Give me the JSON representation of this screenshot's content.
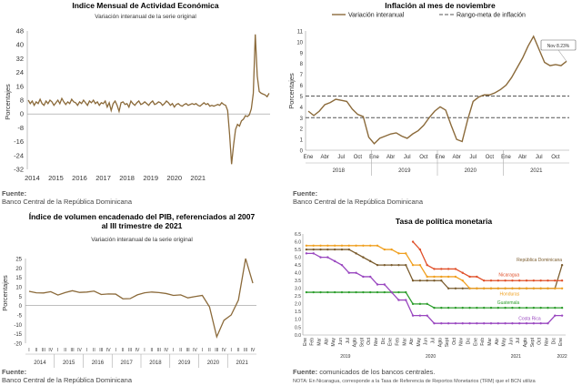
{
  "charts": {
    "imae": {
      "title": "Indice Mensual de  Actividad Económica",
      "subtitle": "Variación interanual de la serie original",
      "ylabel": "Porcentajes",
      "source_label": "Fuente:",
      "source_text": "Banco Central de la República Dominicana"
    },
    "infl": {
      "title": "Inflación al mes de noviembre",
      "ylabel": "Porcentajes",
      "annotation": "Nov 8.23%",
      "source_label": "Fuente:",
      "source_text": "Banco Central de la República Dominicana"
    },
    "pib": {
      "title_line1": "Índice de volumen encadenado del PIB, referenciados al 2007",
      "title_line2": "al III trimestre de 2021",
      "subtitle": "Variación interanual de la serie original",
      "ylabel": "Porcentajes",
      "source_label": "Fuente:",
      "source_text": "Banco Central de la República Dominicana"
    },
    "tpm": {
      "title": "Tasa de política monetaria",
      "source_label": "Fuente:",
      "source_text": "comunicados de los bancos centrales.",
      "note": "NOTA: En Nicaragua, corresponde a la Tasa de Referencia de Reportos Monetarios (TRM) que el BCN utiliza"
    }
  },
  "chart_data": [
    {
      "id": "imae",
      "type": "line",
      "title": "Indice Mensual de  Actividad Económica",
      "subtitle": "Variación interanual de la serie original",
      "ylabel": "Porcentajes",
      "xlabel": "",
      "ylim": [
        -32,
        48
      ],
      "yticks": [
        -32,
        -24,
        -16,
        -8,
        0,
        8,
        16,
        24,
        32,
        40,
        48
      ],
      "xticks": [
        "2014",
        "2015",
        "2016",
        "2017",
        "2018",
        "2019",
        "2020",
        "2021"
      ],
      "x_start": "2014-01",
      "grid": false,
      "color": "#8b6a3a",
      "values": [
        8,
        6,
        7.5,
        5,
        7,
        6,
        8.5,
        6,
        5,
        7.5,
        6,
        8,
        7,
        5,
        6.5,
        8,
        6,
        9,
        7,
        5.5,
        7,
        6,
        8.5,
        7,
        6.5,
        5,
        7,
        6,
        8,
        6.5,
        5,
        7.5,
        6.5,
        8,
        6,
        7,
        5,
        6.5,
        6,
        7.5,
        4,
        6.5,
        2,
        6,
        7.5,
        5,
        1.5,
        6.5,
        7,
        5.5,
        6,
        4,
        7.5,
        6,
        5,
        6.5,
        7.5,
        5.5,
        6,
        7,
        6,
        5,
        6.5,
        7.5,
        5.5,
        6,
        7,
        6.5,
        5,
        6,
        7.5,
        6.5,
        5,
        6,
        4,
        5.5,
        6,
        5,
        4.5,
        5.5,
        6,
        5,
        5.5,
        6,
        5.5,
        6,
        5,
        4.5,
        5.5,
        6.5,
        5.5,
        6,
        4.5,
        5,
        4.5,
        5,
        5.5,
        5,
        6.5,
        5.5,
        5,
        2,
        -12,
        -29,
        -18,
        -9,
        -6,
        -7,
        -4,
        -3,
        -1,
        -1.5,
        -0.5,
        3,
        12,
        46,
        22,
        13,
        12,
        11.5,
        11,
        10,
        12
      ]
    },
    {
      "id": "infl",
      "type": "line",
      "title": "Inflación al mes de noviembre",
      "ylabel": "Porcentajes",
      "ylim": [
        0,
        11
      ],
      "yticks": [
        0,
        1,
        2,
        3,
        4,
        5,
        6,
        7,
        8,
        9,
        10,
        11
      ],
      "month_labels": [
        "Ene",
        "Abr",
        "Jul",
        "Oct"
      ],
      "years": [
        "2018",
        "2019",
        "2020",
        "2021"
      ],
      "grid": false,
      "legend": "top",
      "legend_entries": [
        "Variación interanual",
        "Rango-meta de inflación"
      ],
      "band": [
        3,
        5
      ],
      "annotation": "Nov 8.23%",
      "series": [
        {
          "name": "Variación interanual",
          "color": "#8b6a3a",
          "values": [
            3.6,
            3.2,
            3.6,
            4.2,
            4.4,
            4.7,
            4.6,
            4.5,
            3.8,
            3.3,
            3.1,
            1.2,
            0.6,
            1.1,
            1.3,
            1.5,
            1.6,
            1.3,
            1.1,
            1.5,
            1.8,
            2.3,
            3.0,
            3.6,
            4.0,
            3.7,
            2.3,
            1.0,
            0.8,
            2.8,
            4.5,
            4.9,
            5.1,
            5.1,
            5.3,
            5.6,
            6.0,
            6.7,
            7.6,
            8.5,
            9.6,
            10.5,
            9.3,
            8.1,
            7.8,
            7.9,
            7.8,
            8.2
          ]
        }
      ]
    },
    {
      "id": "pib",
      "type": "line",
      "title": "Índice de volumen encadenado del PIB, referenciados al 2007 al III trimestre de 2021",
      "subtitle": "Variación interanual de la serie original",
      "ylabel": "Porcentajes",
      "ylim": [
        -20,
        25
      ],
      "yticks": [
        -20,
        -15,
        -10,
        -5,
        0,
        5,
        10,
        15,
        20,
        25
      ],
      "quarter_labels": [
        "I",
        "II",
        "III",
        "IV"
      ],
      "years": [
        "2014",
        "2015",
        "2016",
        "2017",
        "2018",
        "2019",
        "2020",
        "2021"
      ],
      "grid": false,
      "color": "#8b6a3a",
      "values": [
        7.6,
        6.8,
        6.7,
        7.4,
        5.6,
        6.9,
        7.9,
        7.0,
        7.2,
        7.7,
        5.9,
        6.2,
        6.1,
        3.6,
        3.7,
        5.7,
        6.8,
        7.2,
        6.9,
        6.4,
        5.4,
        5.7,
        4.1,
        4.8,
        5.4,
        -0.7,
        -16.6,
        -7.8,
        -5.0,
        2.9,
        25.0,
        11.9
      ]
    },
    {
      "id": "tpm",
      "type": "line",
      "title": "Tasa de política monetaria",
      "ylim": [
        0,
        6.5
      ],
      "yticks": [
        0,
        0.5,
        1,
        1.5,
        2,
        2.5,
        3,
        3.5,
        4,
        4.5,
        5,
        5.5,
        6,
        6.5
      ],
      "month_labels": [
        "Ene",
        "Feb",
        "Mar",
        "Abr",
        "May",
        "Jun",
        "Jul",
        "Agto",
        "Sept",
        "Oct",
        "Nov",
        "Dic"
      ],
      "years": [
        "2019",
        "2020",
        "2021",
        "2022"
      ],
      "grid": false,
      "series": [
        {
          "name": "República Dominicana",
          "color": "#7a5c2e",
          "values": [
            5.5,
            5.5,
            5.5,
            5.5,
            5.5,
            5.5,
            5.5,
            5.25,
            5,
            4.75,
            4.5,
            4.5,
            4.5,
            4.5,
            4.5,
            3.5,
            3.5,
            3.5,
            3.5,
            3.5,
            3,
            3,
            3,
            3,
            3,
            3,
            3,
            3,
            3,
            3,
            3,
            3,
            3,
            3,
            3,
            3,
            4.5
          ]
        },
        {
          "name": "Nicaragua",
          "color": "#e0502a",
          "values": [
            null,
            null,
            null,
            null,
            null,
            null,
            null,
            null,
            null,
            null,
            null,
            null,
            null,
            null,
            null,
            6,
            5.5,
            4.5,
            4.25,
            4.25,
            4.25,
            4.25,
            4,
            3.75,
            3.75,
            3.5,
            3.5,
            3.5,
            3.5,
            3.5,
            3.5,
            3.5,
            3.5,
            3.5,
            3.5,
            3.5,
            3.5
          ]
        },
        {
          "name": "Honduras",
          "color": "#f0a020",
          "values": [
            5.75,
            5.75,
            5.75,
            5.75,
            5.75,
            5.75,
            5.75,
            5.75,
            5.75,
            5.75,
            5.75,
            5.5,
            5.5,
            5.25,
            5.25,
            4.5,
            4.5,
            3.75,
            3.75,
            3.75,
            3.75,
            3.75,
            3.5,
            3,
            3,
            3,
            3,
            3,
            3,
            3,
            3,
            3,
            3,
            3,
            3,
            3,
            3
          ]
        },
        {
          "name": "Guatemala",
          "color": "#2e9e2e",
          "values": [
            2.75,
            2.75,
            2.75,
            2.75,
            2.75,
            2.75,
            2.75,
            2.75,
            2.75,
            2.75,
            2.75,
            2.75,
            2.75,
            2.75,
            2.75,
            2,
            2,
            2,
            1.75,
            1.75,
            1.75,
            1.75,
            1.75,
            1.75,
            1.75,
            1.75,
            1.75,
            1.75,
            1.75,
            1.75,
            1.75,
            1.75,
            1.75,
            1.75,
            1.75,
            1.75,
            1.75
          ]
        },
        {
          "name": "Costa Rica",
          "color": "#9a48c0",
          "values": [
            5.25,
            5.25,
            5,
            5,
            4.75,
            4.5,
            4,
            4,
            3.75,
            3.75,
            3.25,
            3.25,
            2.75,
            2.25,
            2.25,
            1.25,
            1.25,
            1.25,
            0.75,
            0.75,
            0.75,
            0.75,
            0.75,
            0.75,
            0.75,
            0.75,
            0.75,
            0.75,
            0.75,
            0.75,
            0.75,
            0.75,
            0.75,
            0.75,
            0.75,
            1.25,
            1.25
          ]
        }
      ]
    }
  ]
}
